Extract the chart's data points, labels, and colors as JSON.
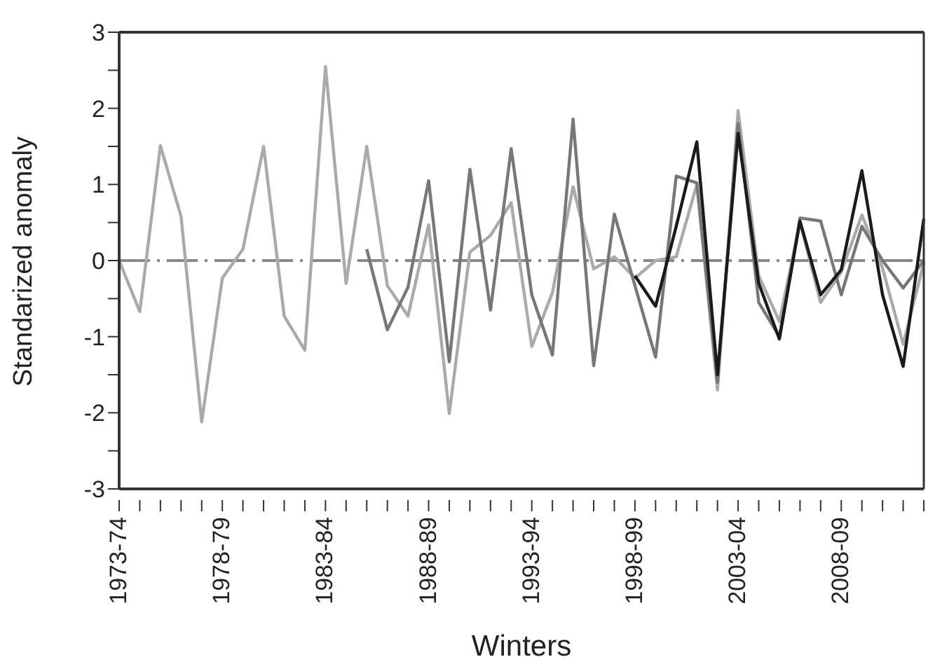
{
  "chart_data": {
    "type": "line",
    "xlabel": "Winters",
    "ylabel": "Standarized anomaly",
    "categories": [
      "1973-74",
      null,
      null,
      null,
      null,
      "1978-79",
      null,
      null,
      null,
      null,
      "1983-84",
      null,
      null,
      null,
      null,
      "1988-89",
      null,
      null,
      null,
      null,
      "1993-94",
      null,
      null,
      null,
      null,
      "1998-99",
      null,
      null,
      null,
      null,
      "2003-04",
      null,
      null,
      null,
      null,
      "2008-09",
      null,
      null,
      null,
      null
    ],
    "series": [
      {
        "color": "#aaaaaa",
        "values": [
          0,
          -0.67,
          1.51,
          0.58,
          -2.12,
          -0.23,
          0.15,
          1.5,
          -0.73,
          -1.18,
          2.55,
          -0.3,
          1.5,
          -0.33,
          -0.73,
          0.47,
          -2.01,
          0.11,
          0.33,
          0.76,
          -1.13,
          -0.42,
          0.97,
          -0.11,
          0.05,
          -0.23,
          0,
          0.05,
          1,
          -1.7,
          1.97,
          -0.2,
          -0.8,
          0.5,
          -0.55,
          -0.15,
          0.6,
          -0.1,
          -1.1,
          -0.03
        ]
      },
      {
        "color": "#777777",
        "values": [
          null,
          null,
          null,
          null,
          null,
          null,
          null,
          null,
          null,
          null,
          null,
          null,
          0.15,
          -0.91,
          -0.35,
          1.05,
          -1.33,
          1.2,
          -0.65,
          1.47,
          -0.45,
          -1.24,
          1.86,
          -1.38,
          0.61,
          -0.33,
          -1.27,
          1.11,
          1.02,
          -1.6,
          1.8,
          -0.55,
          -1,
          0.56,
          0.52,
          -0.45,
          0.45,
          0,
          -0.36,
          0
        ]
      },
      {
        "color": "#1a1a1a",
        "values": [
          null,
          null,
          null,
          null,
          null,
          null,
          null,
          null,
          null,
          null,
          null,
          null,
          null,
          null,
          null,
          null,
          null,
          null,
          null,
          null,
          null,
          null,
          null,
          null,
          null,
          -0.2,
          -0.6,
          0.45,
          1.56,
          -1.5,
          1.67,
          -0.3,
          -1.03,
          0.52,
          -0.45,
          -0.12,
          1.18,
          -0.45,
          -1.39,
          0.55
        ]
      }
    ],
    "ylim": [
      -3,
      3
    ],
    "yticks": [
      -3,
      {
        "value": -2.5,
        "label": null
      },
      -2,
      {
        "value": -1.5,
        "label": null
      },
      -1,
      {
        "value": -0.5,
        "label": null
      },
      0,
      {
        "value": 0.5,
        "label": null
      },
      1,
      {
        "value": 1.5,
        "label": null
      },
      2,
      {
        "value": 2.5,
        "label": null
      },
      3
    ],
    "ref_lines": [
      {
        "axis": "y",
        "value": 0,
        "color": "#888888",
        "line_style": "dashed"
      }
    ],
    "grid": false,
    "marker": "none",
    "line_style": "solid"
  }
}
